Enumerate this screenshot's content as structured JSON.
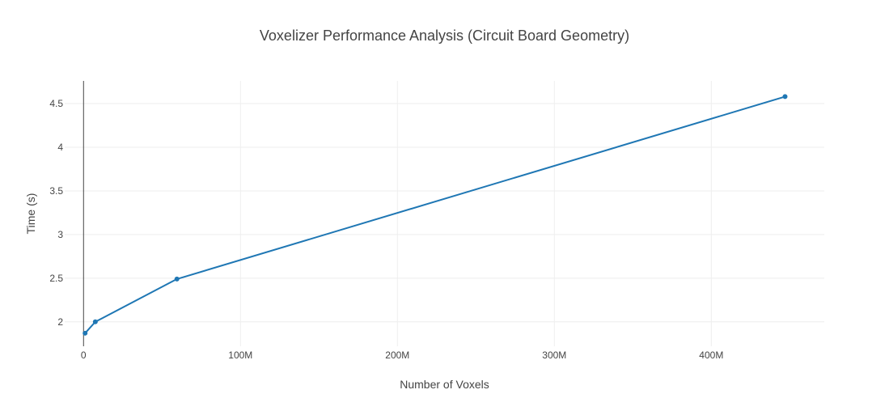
{
  "chart_data": {
    "type": "line",
    "title": "Voxelizer Performance Analysis (Circuit Board Geometry)",
    "xlabel": "Number of Voxels",
    "ylabel": "Time (s)",
    "xlim": [
      -12000000,
      472000000
    ],
    "ylim": [
      1.72,
      4.76
    ],
    "x_ticks": [
      0,
      100000000,
      200000000,
      300000000,
      400000000
    ],
    "x_tick_labels": [
      "0",
      "100M",
      "200M",
      "300M",
      "400M"
    ],
    "y_ticks": [
      2,
      2.5,
      3,
      3.5,
      4,
      4.5
    ],
    "y_tick_labels": [
      "2",
      "2.5",
      "3",
      "3.5",
      "4",
      "4.5"
    ],
    "grid": true,
    "series": [
      {
        "color": "#1f77b4",
        "x": [
          1000000,
          7500000,
          59500000,
          447000000
        ],
        "y": [
          1.87,
          2.0,
          2.49,
          4.58
        ]
      }
    ]
  }
}
